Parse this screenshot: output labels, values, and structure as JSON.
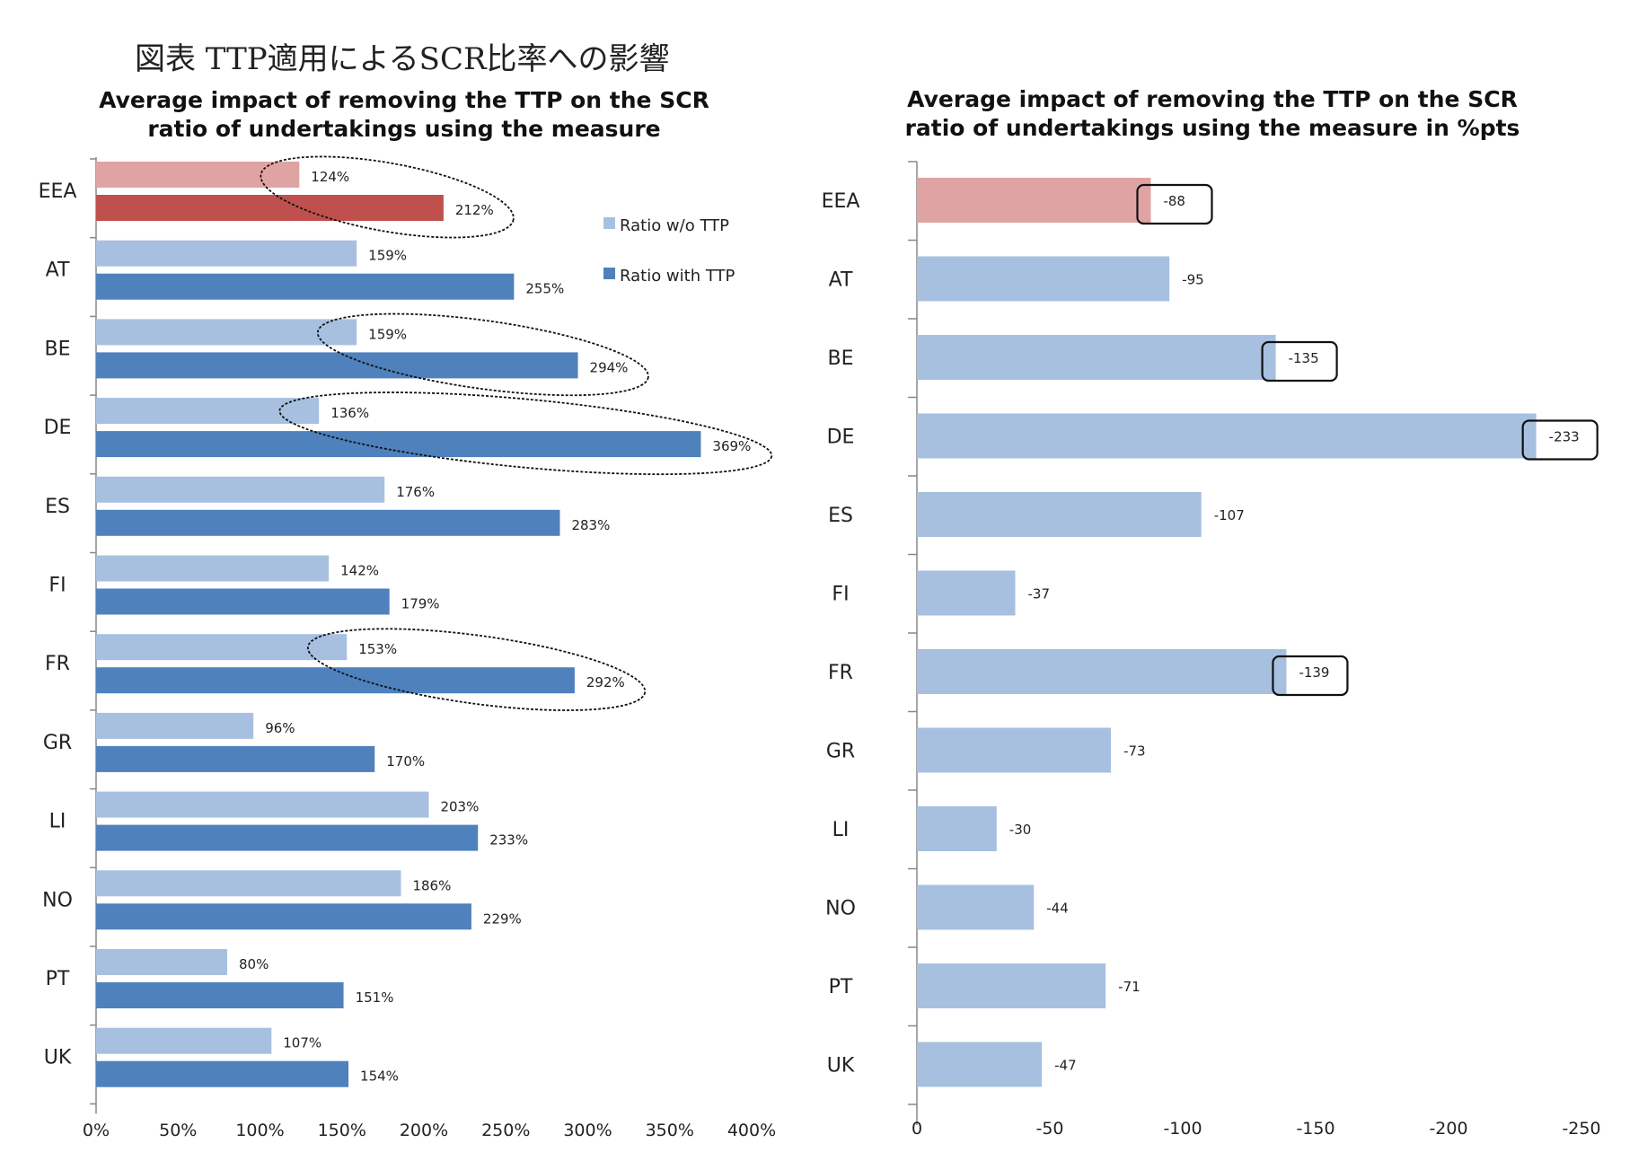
{
  "figure_title": "図表 TTP適用によるSCR比率への影響",
  "chart_data": [
    {
      "type": "bar",
      "orientation": "horizontal",
      "title": "Average impact of removing the TTP on the SCR ratio of undertakings using the measure",
      "categories": [
        "EEA",
        "AT",
        "BE",
        "DE",
        "ES",
        "FI",
        "FR",
        "GR",
        "LI",
        "NO",
        "PT",
        "UK"
      ],
      "series": [
        {
          "name": "Ratio w/o TTP",
          "values": [
            124,
            159,
            159,
            136,
            176,
            142,
            153,
            96,
            203,
            186,
            80,
            107
          ],
          "color": "#a7c0e0",
          "highlight_color": "#e0a3a3"
        },
        {
          "name": "Ratio with TTP",
          "values": [
            212,
            255,
            294,
            369,
            283,
            179,
            292,
            170,
            233,
            229,
            151,
            154
          ],
          "color": "#4f81bd",
          "highlight_color": "#c0504d"
        }
      ],
      "value_suffix": "%",
      "xlim": [
        0,
        400
      ],
      "xticks": [
        "0%",
        "50%",
        "100%",
        "150%",
        "200%",
        "250%",
        "300%",
        "350%",
        "400%"
      ],
      "legend_position": "right",
      "highlighted_categories": [
        "EEA"
      ],
      "annotations": [
        {
          "type": "ellipse",
          "category": "EEA"
        },
        {
          "type": "ellipse",
          "category": "BE"
        },
        {
          "type": "ellipse",
          "category": "DE"
        },
        {
          "type": "ellipse",
          "category": "FR"
        }
      ]
    },
    {
      "type": "bar",
      "orientation": "horizontal",
      "title": "Average impact of removing the TTP on the SCR ratio of undertakings using the measure in %pts",
      "categories": [
        "EEA",
        "AT",
        "BE",
        "DE",
        "ES",
        "FI",
        "FR",
        "GR",
        "LI",
        "NO",
        "PT",
        "UK"
      ],
      "series": [
        {
          "values": [
            -88,
            -95,
            -135,
            -233,
            -107,
            -37,
            -139,
            -73,
            -30,
            -44,
            -71,
            -47
          ],
          "color": "#a7c0e0",
          "highlight_color": "#e0a3a3"
        }
      ],
      "xlim": [
        0,
        -250
      ],
      "xticks": [
        "0",
        "-50",
        "-100",
        "-150",
        "-200",
        "-250"
      ],
      "highlighted_categories": [
        "EEA"
      ],
      "annotations": [
        {
          "type": "box",
          "category": "EEA"
        },
        {
          "type": "box",
          "category": "BE"
        },
        {
          "type": "box",
          "category": "DE"
        },
        {
          "type": "box",
          "category": "FR"
        }
      ]
    }
  ]
}
